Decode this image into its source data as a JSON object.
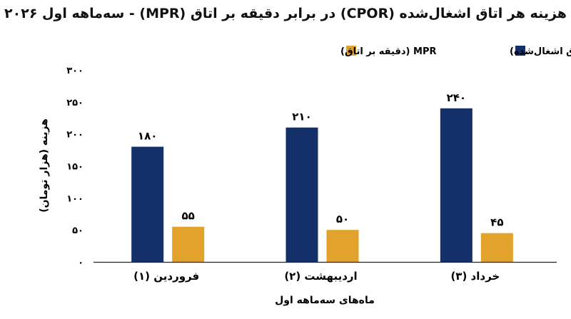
{
  "chart_data": {
    "type": "bar",
    "title": "هزینه هر اتاق اشغال‌شده (CPOR) در برابر دقیقه بر اتاق (MPR) - سه‌ماهه اول ۲۰۲۶",
    "categories": [
      "فروردین (۱)",
      "اردیبهشت (۲)",
      "خرداد (۳)"
    ],
    "series": [
      {
        "name": "CPOR (هزینه هر اتاق اشغال‌شده)",
        "color": "#14306b",
        "values": [
          180,
          210,
          240
        ],
        "labels": [
          "۱۸۰",
          "۲۱۰",
          "۲۴۰"
        ]
      },
      {
        "name": "MPR (دقیقه بر اتاق)",
        "color": "#e3a22b",
        "values": [
          55,
          50,
          45
        ],
        "labels": [
          "۵۵",
          "۵۰",
          "۴۵"
        ]
      }
    ],
    "ylim": [
      0,
      300
    ],
    "yticks": [
      0,
      50,
      100,
      150,
      200,
      250,
      300
    ],
    "ytick_labels": [
      "۰",
      "۵۰",
      "۱۰۰",
      "۱۵۰",
      "۲۰۰",
      "۲۵۰",
      "۳۰۰"
    ],
    "ylabel": "هزینه (هزار تومان)",
    "xlabel": "ماه‌های سه‌ماهه اول",
    "legend_position": "top-right",
    "grid": false
  }
}
